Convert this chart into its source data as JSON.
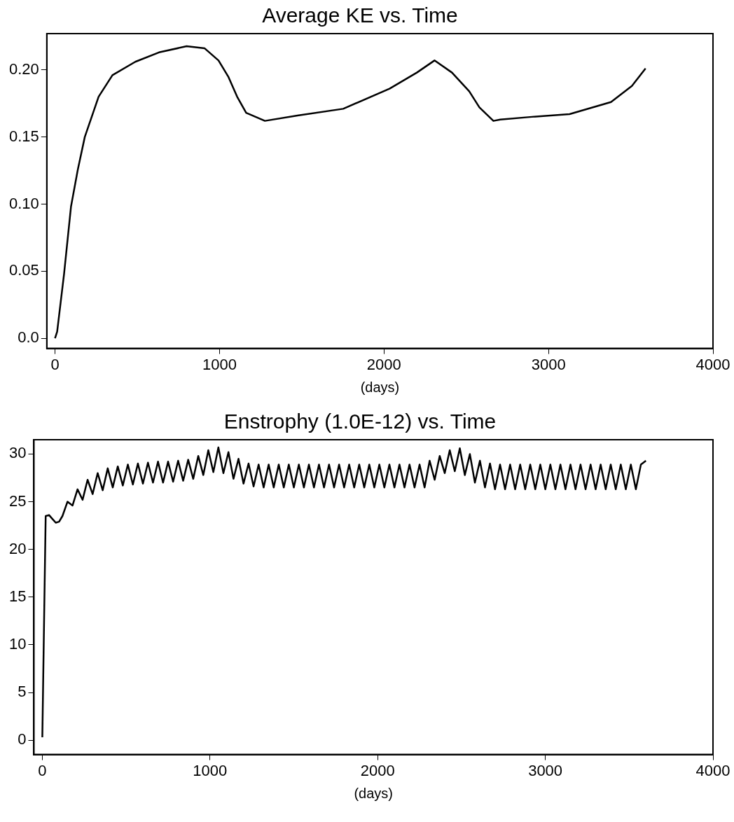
{
  "chart_data": [
    {
      "type": "line",
      "title": "Average KE vs. Time",
      "xlabel": "(days)",
      "color": "#000000",
      "grid": false,
      "marker": "none",
      "line_style": "solid",
      "x": [
        0,
        13,
        55,
        97,
        139,
        181,
        265,
        349,
        488,
        632,
        800,
        910,
        994,
        1053,
        1107,
        1162,
        1276,
        1474,
        1752,
        2034,
        2200,
        2307,
        2413,
        2518,
        2580,
        2665,
        2707,
        2900,
        3128,
        3380,
        3507,
        3590
      ],
      "values": [
        0,
        0.005,
        0.048,
        0.098,
        0.126,
        0.15,
        0.18,
        0.196,
        0.206,
        0.213,
        0.2176,
        0.216,
        0.207,
        0.195,
        0.18,
        0.168,
        0.162,
        0.166,
        0.171,
        0.186,
        0.198,
        0.207,
        0.198,
        0.184,
        0.172,
        0.162,
        0.163,
        0.165,
        0.167,
        0.176,
        0.188,
        0.201
      ],
      "xlim": [
        -50,
        4000
      ],
      "xticks": [
        0,
        1000,
        2000,
        3000,
        4000
      ],
      "ylim": [
        -0.0075,
        0.227
      ],
      "yticks": [
        {
          "value": 0,
          "label": "0.0"
        },
        0.05,
        {
          "value": 0.1,
          "label": "0.10"
        },
        0.15,
        {
          "value": 0.2,
          "label": "0.20"
        }
      ]
    },
    {
      "type": "line",
      "title": "Enstrophy (1.0E-12) vs. Time",
      "xlabel": "(days)",
      "color": "#000000",
      "grid": false,
      "marker": "none",
      "line_style": "solid",
      "x": [
        0,
        10,
        20,
        40,
        60,
        80,
        100,
        120,
        150,
        180,
        210,
        240,
        270,
        300,
        330,
        360,
        390,
        420,
        450,
        480,
        510,
        540,
        570,
        600,
        630,
        660,
        690,
        720,
        750,
        780,
        810,
        840,
        870,
        900,
        930,
        960,
        990,
        1020,
        1050,
        1080,
        1110,
        1140,
        1170,
        1200,
        1230,
        1260,
        1290,
        1320,
        1350,
        1380,
        1410,
        1440,
        1470,
        1500,
        1530,
        1560,
        1590,
        1620,
        1650,
        1680,
        1710,
        1740,
        1770,
        1800,
        1830,
        1860,
        1890,
        1920,
        1950,
        1980,
        2010,
        2040,
        2070,
        2100,
        2130,
        2160,
        2190,
        2220,
        2250,
        2280,
        2310,
        2340,
        2370,
        2400,
        2430,
        2460,
        2490,
        2520,
        2550,
        2580,
        2610,
        2640,
        2670,
        2700,
        2730,
        2760,
        2790,
        2820,
        2850,
        2880,
        2910,
        2940,
        2970,
        3000,
        3030,
        3060,
        3090,
        3120,
        3150,
        3180,
        3210,
        3240,
        3270,
        3300,
        3330,
        3360,
        3390,
        3420,
        3450,
        3480,
        3510,
        3540,
        3570,
        3600
      ],
      "values": [
        0.3,
        12,
        23.5,
        23.6,
        23.2,
        22.8,
        22.9,
        23.5,
        25.0,
        24.6,
        26.3,
        25.2,
        27.3,
        25.8,
        28.0,
        26.2,
        28.5,
        26.5,
        28.7,
        26.7,
        28.9,
        26.8,
        29.0,
        26.9,
        29.1,
        27.0,
        29.2,
        27.0,
        29.2,
        27.1,
        29.3,
        27.2,
        29.4,
        27.4,
        29.8,
        27.8,
        30.4,
        28.1,
        30.7,
        28.0,
        30.2,
        27.4,
        29.5,
        26.9,
        29.0,
        26.6,
        28.9,
        26.5,
        28.9,
        26.5,
        28.9,
        26.5,
        28.9,
        26.5,
        28.9,
        26.5,
        28.9,
        26.5,
        28.9,
        26.5,
        28.9,
        26.5,
        28.9,
        26.5,
        28.9,
        26.5,
        28.9,
        26.5,
        28.9,
        26.5,
        28.9,
        26.5,
        28.9,
        26.5,
        28.9,
        26.5,
        28.9,
        26.5,
        28.9,
        26.5,
        29.3,
        27.3,
        29.8,
        28.0,
        30.4,
        28.2,
        30.6,
        27.8,
        30.0,
        27.0,
        29.3,
        26.5,
        29.0,
        26.3,
        28.9,
        26.3,
        28.9,
        26.3,
        28.9,
        26.3,
        28.9,
        26.3,
        28.9,
        26.3,
        28.9,
        26.3,
        28.9,
        26.3,
        28.9,
        26.3,
        28.9,
        26.3,
        28.9,
        26.3,
        28.9,
        26.3,
        28.9,
        26.3,
        28.9,
        26.3,
        28.9,
        26.3,
        28.9,
        29.3
      ],
      "xlim": [
        -50,
        4000
      ],
      "xticks": [
        0,
        1000,
        2000,
        3000,
        4000
      ],
      "ylim": [
        -1.5,
        31.5
      ],
      "yticks": [
        0,
        5,
        10,
        15,
        20,
        25,
        30
      ]
    }
  ]
}
